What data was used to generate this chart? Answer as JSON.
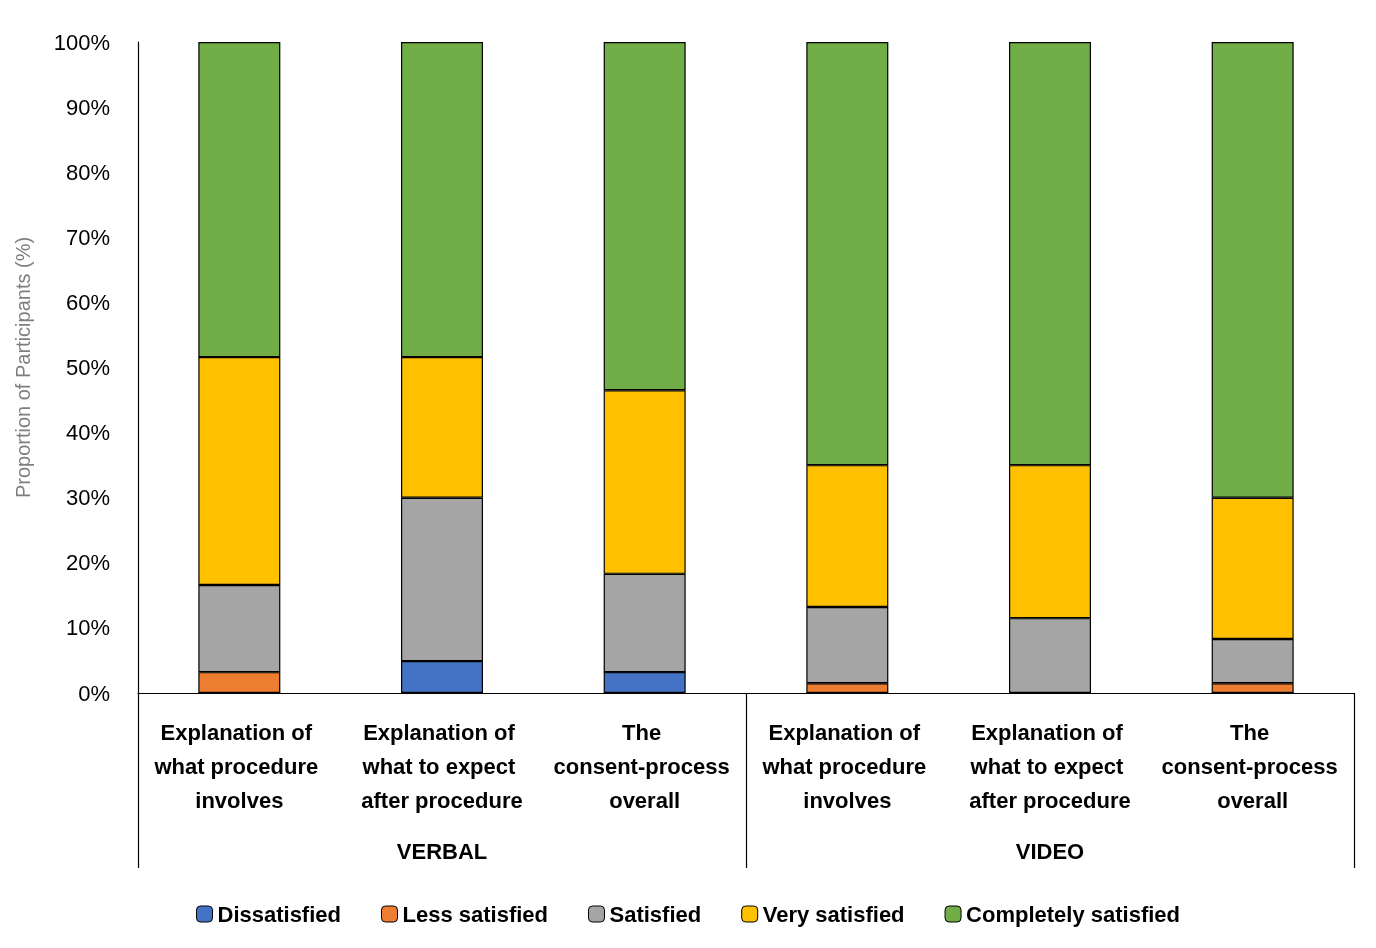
{
  "chart_data": {
    "type": "bar",
    "stacked": true,
    "ylabel": "Proportion of Participants (%)",
    "categories": [
      "Explanation of what procedure involves",
      "Explanation of what to expect after procedure",
      "The consent-process overall",
      "Explanation of what procedure involves",
      "Explanation of what to expect after procedure",
      "The consent-process overall"
    ],
    "annotations": [
      "VERBAL",
      "VIDEO"
    ],
    "series": [
      {
        "name": "Dissatisfied",
        "color": "#4472c4",
        "values": [
          0,
          4.9,
          3.2,
          0,
          0,
          0
        ]
      },
      {
        "name": "Less satisfied",
        "color": "#ed7d31",
        "values": [
          3.2,
          0,
          0,
          1.5,
          0,
          1.5
        ]
      },
      {
        "name": "Satisfied",
        "color": "#a5a5a5",
        "values": [
          13.4,
          25.1,
          15.1,
          11.7,
          11.5,
          6.8
        ]
      },
      {
        "name": "Very satisfied",
        "color": "#ffc000",
        "values": [
          35,
          21.6,
          28.2,
          21.8,
          23.5,
          21.7
        ]
      },
      {
        "name": "Completely satisfied",
        "color": "#70ad47",
        "values": [
          48.4,
          48.4,
          53.5,
          65,
          65,
          70
        ]
      }
    ],
    "ylim": [
      0,
      100
    ],
    "yticks": [
      {
        "value": 0,
        "label": "0%"
      },
      {
        "value": 10,
        "label": "10%"
      },
      {
        "value": 20,
        "label": "20%"
      },
      {
        "value": 30,
        "label": "30%"
      },
      {
        "value": 40,
        "label": "40%"
      },
      {
        "value": 50,
        "label": "50%"
      },
      {
        "value": 60,
        "label": "60%"
      },
      {
        "value": 70,
        "label": "70%"
      },
      {
        "value": 80,
        "label": "80%"
      },
      {
        "value": 90,
        "label": "90%"
      },
      {
        "value": 100,
        "label": "100%"
      }
    ],
    "grid": false,
    "legend": "bottom"
  }
}
